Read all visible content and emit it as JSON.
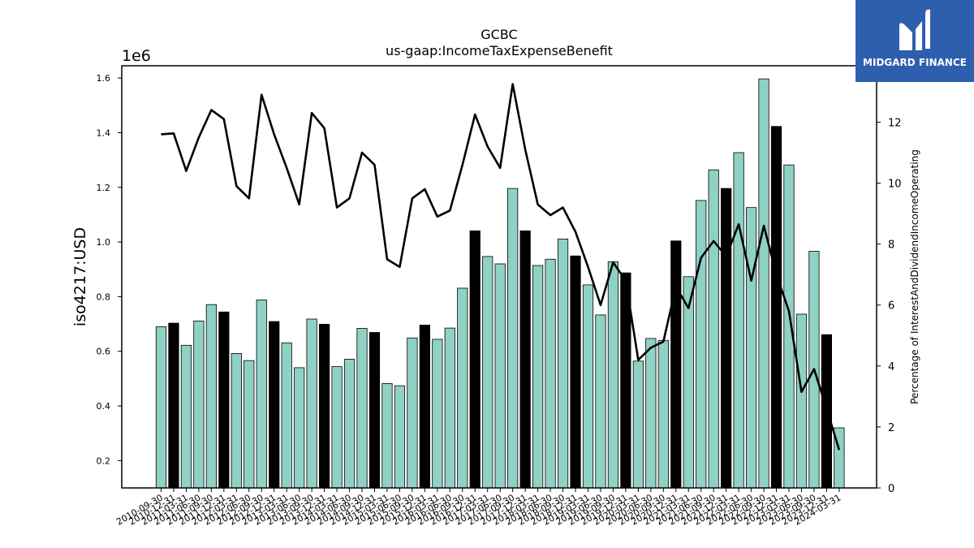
{
  "brand": {
    "name": "MIDGARD FINANCE",
    "bg_color": "#2d5fae"
  },
  "chart_data": {
    "type": "bar",
    "title": "GCBC",
    "subtitle": "us-gaap:IncomeTaxExpenseBenefit",
    "ylabel": "iso4217:USD",
    "y_multiplier_label": "1e6",
    "y2label": "Percentage of InterestAndDividendIncomeOperating",
    "ylim": [
      100000,
      1645000
    ],
    "y2lim": [
      0,
      13.85
    ],
    "yticks": [
      0.2,
      0.4,
      0.6,
      0.8,
      1.0,
      1.2,
      1.4,
      1.6
    ],
    "y2ticks": [
      0,
      2,
      4,
      6,
      8,
      10,
      12
    ],
    "colors": {
      "bar": "#8fd1c4",
      "bar_highlight": "#000000",
      "line": "#000000"
    },
    "categories": [
      "2010-09-30",
      "2010-12-31",
      "2011-03-31",
      "2011-06-30",
      "2011-09-30",
      "2011-12-31",
      "2012-03-31",
      "2012-06-30",
      "2012-09-30",
      "2012-12-31",
      "2013-03-31",
      "2013-06-30",
      "2013-09-30",
      "2013-12-31",
      "2014-03-31",
      "2014-06-30",
      "2014-09-30",
      "2014-12-31",
      "2015-03-31",
      "2015-06-30",
      "2015-09-30",
      "2015-12-31",
      "2016-03-31",
      "2016-06-30",
      "2016-09-30",
      "2016-12-31",
      "2017-03-31",
      "2017-06-30",
      "2017-09-30",
      "2017-12-31",
      "2018-03-31",
      "2018-06-30",
      "2018-09-30",
      "2018-12-31",
      "2019-03-31",
      "2019-06-30",
      "2019-09-30",
      "2019-12-31",
      "2020-03-31",
      "2020-06-30",
      "2020-09-30",
      "2020-12-31",
      "2021-03-31",
      "2021-06-30",
      "2021-09-30",
      "2021-12-31",
      "2022-03-31",
      "2022-06-30",
      "2022-09-30",
      "2022-12-31",
      "2023-03-31",
      "2023-06-30",
      "2023-09-30",
      "2023-12-31",
      "2024-03-31"
    ],
    "xticklabels": [
      "2010-09-30",
      "2010-12-31",
      "2011-03-31",
      "2011-06-30",
      "2011-09-30",
      "2011-12-31",
      "2012-03-31",
      "2012-06-30",
      "2012-09-30",
      "2012-12-31",
      "2013-03-31",
      "2013-06-30",
      "2013-09-30",
      "2013-12-31",
      "2014-03-31",
      "2014-06-30",
      "2014-09-30",
      "2014-12-31",
      "2015-03-31",
      "2015-06-30",
      "2015-09-30",
      "2015-12-31",
      "2016-03-31",
      "2016-06-30",
      "2016-09-30",
      "2016-12-31",
      "2017-03-31",
      "2017-06-30",
      "2017-09-30",
      "2017-12-31",
      "2018-03-31",
      "2018-06-30",
      "2018-09-30",
      "2018-12-31",
      "2019-03-31",
      "2019-06-30",
      "2019-09-30",
      "2019-12-31",
      "2020-03-31",
      "2020-06-30",
      "2020-09-30",
      "2020-12-31",
      "2021-03-31",
      "2021-06-30",
      "2021-09-30",
      "2021-12-31",
      "2022-03-31",
      "2022-06-30",
      "2022-09-30",
      "2022-12-31",
      "2023-03-31",
      "2023-06-30",
      "2023-09-30",
      "2023-12-31",
      "2024-03-31"
    ],
    "values": [
      690000,
      703000,
      622000,
      711000,
      771000,
      744000,
      592000,
      566000,
      788000,
      709000,
      631000,
      540000,
      718000,
      699000,
      544000,
      571000,
      684000,
      669000,
      482000,
      474000,
      649000,
      696000,
      644000,
      685000,
      831000,
      1041000,
      947000,
      920000,
      1196000,
      1041000,
      914000,
      937000,
      1011000,
      949000,
      843000,
      733000,
      928000,
      887000,
      564000,
      647000,
      640000,
      1004000,
      873000,
      1152000,
      1264000,
      1196000,
      1327000,
      1126000,
      1597000,
      1423000,
      1282000,
      736000,
      966000,
      661000,
      320000
    ],
    "highlight": [
      false,
      true,
      false,
      false,
      false,
      true,
      false,
      false,
      false,
      true,
      false,
      false,
      false,
      true,
      false,
      false,
      false,
      true,
      false,
      false,
      false,
      true,
      false,
      false,
      false,
      true,
      false,
      false,
      false,
      true,
      false,
      false,
      false,
      true,
      false,
      false,
      false,
      true,
      false,
      false,
      false,
      true,
      false,
      false,
      false,
      true,
      false,
      false,
      false,
      true,
      false,
      false,
      false,
      true,
      false
    ],
    "line_values": [
      11.6,
      11.63,
      10.4,
      11.5,
      12.4,
      12.1,
      9.9,
      9.5,
      12.9,
      11.6,
      10.5,
      9.3,
      12.3,
      11.8,
      9.2,
      9.5,
      11.0,
      10.6,
      7.5,
      7.25,
      9.5,
      9.8,
      8.9,
      9.1,
      10.6,
      12.25,
      11.2,
      10.5,
      13.25,
      11.1,
      9.3,
      8.95,
      9.2,
      8.4,
      7.25,
      6.0,
      7.4,
      6.8,
      4.2,
      4.6,
      4.8,
      6.6,
      5.9,
      7.55,
      8.1,
      7.6,
      8.65,
      6.8,
      8.6,
      7.0,
      5.8,
      3.15,
      3.9,
      2.6,
      1.25
    ]
  }
}
